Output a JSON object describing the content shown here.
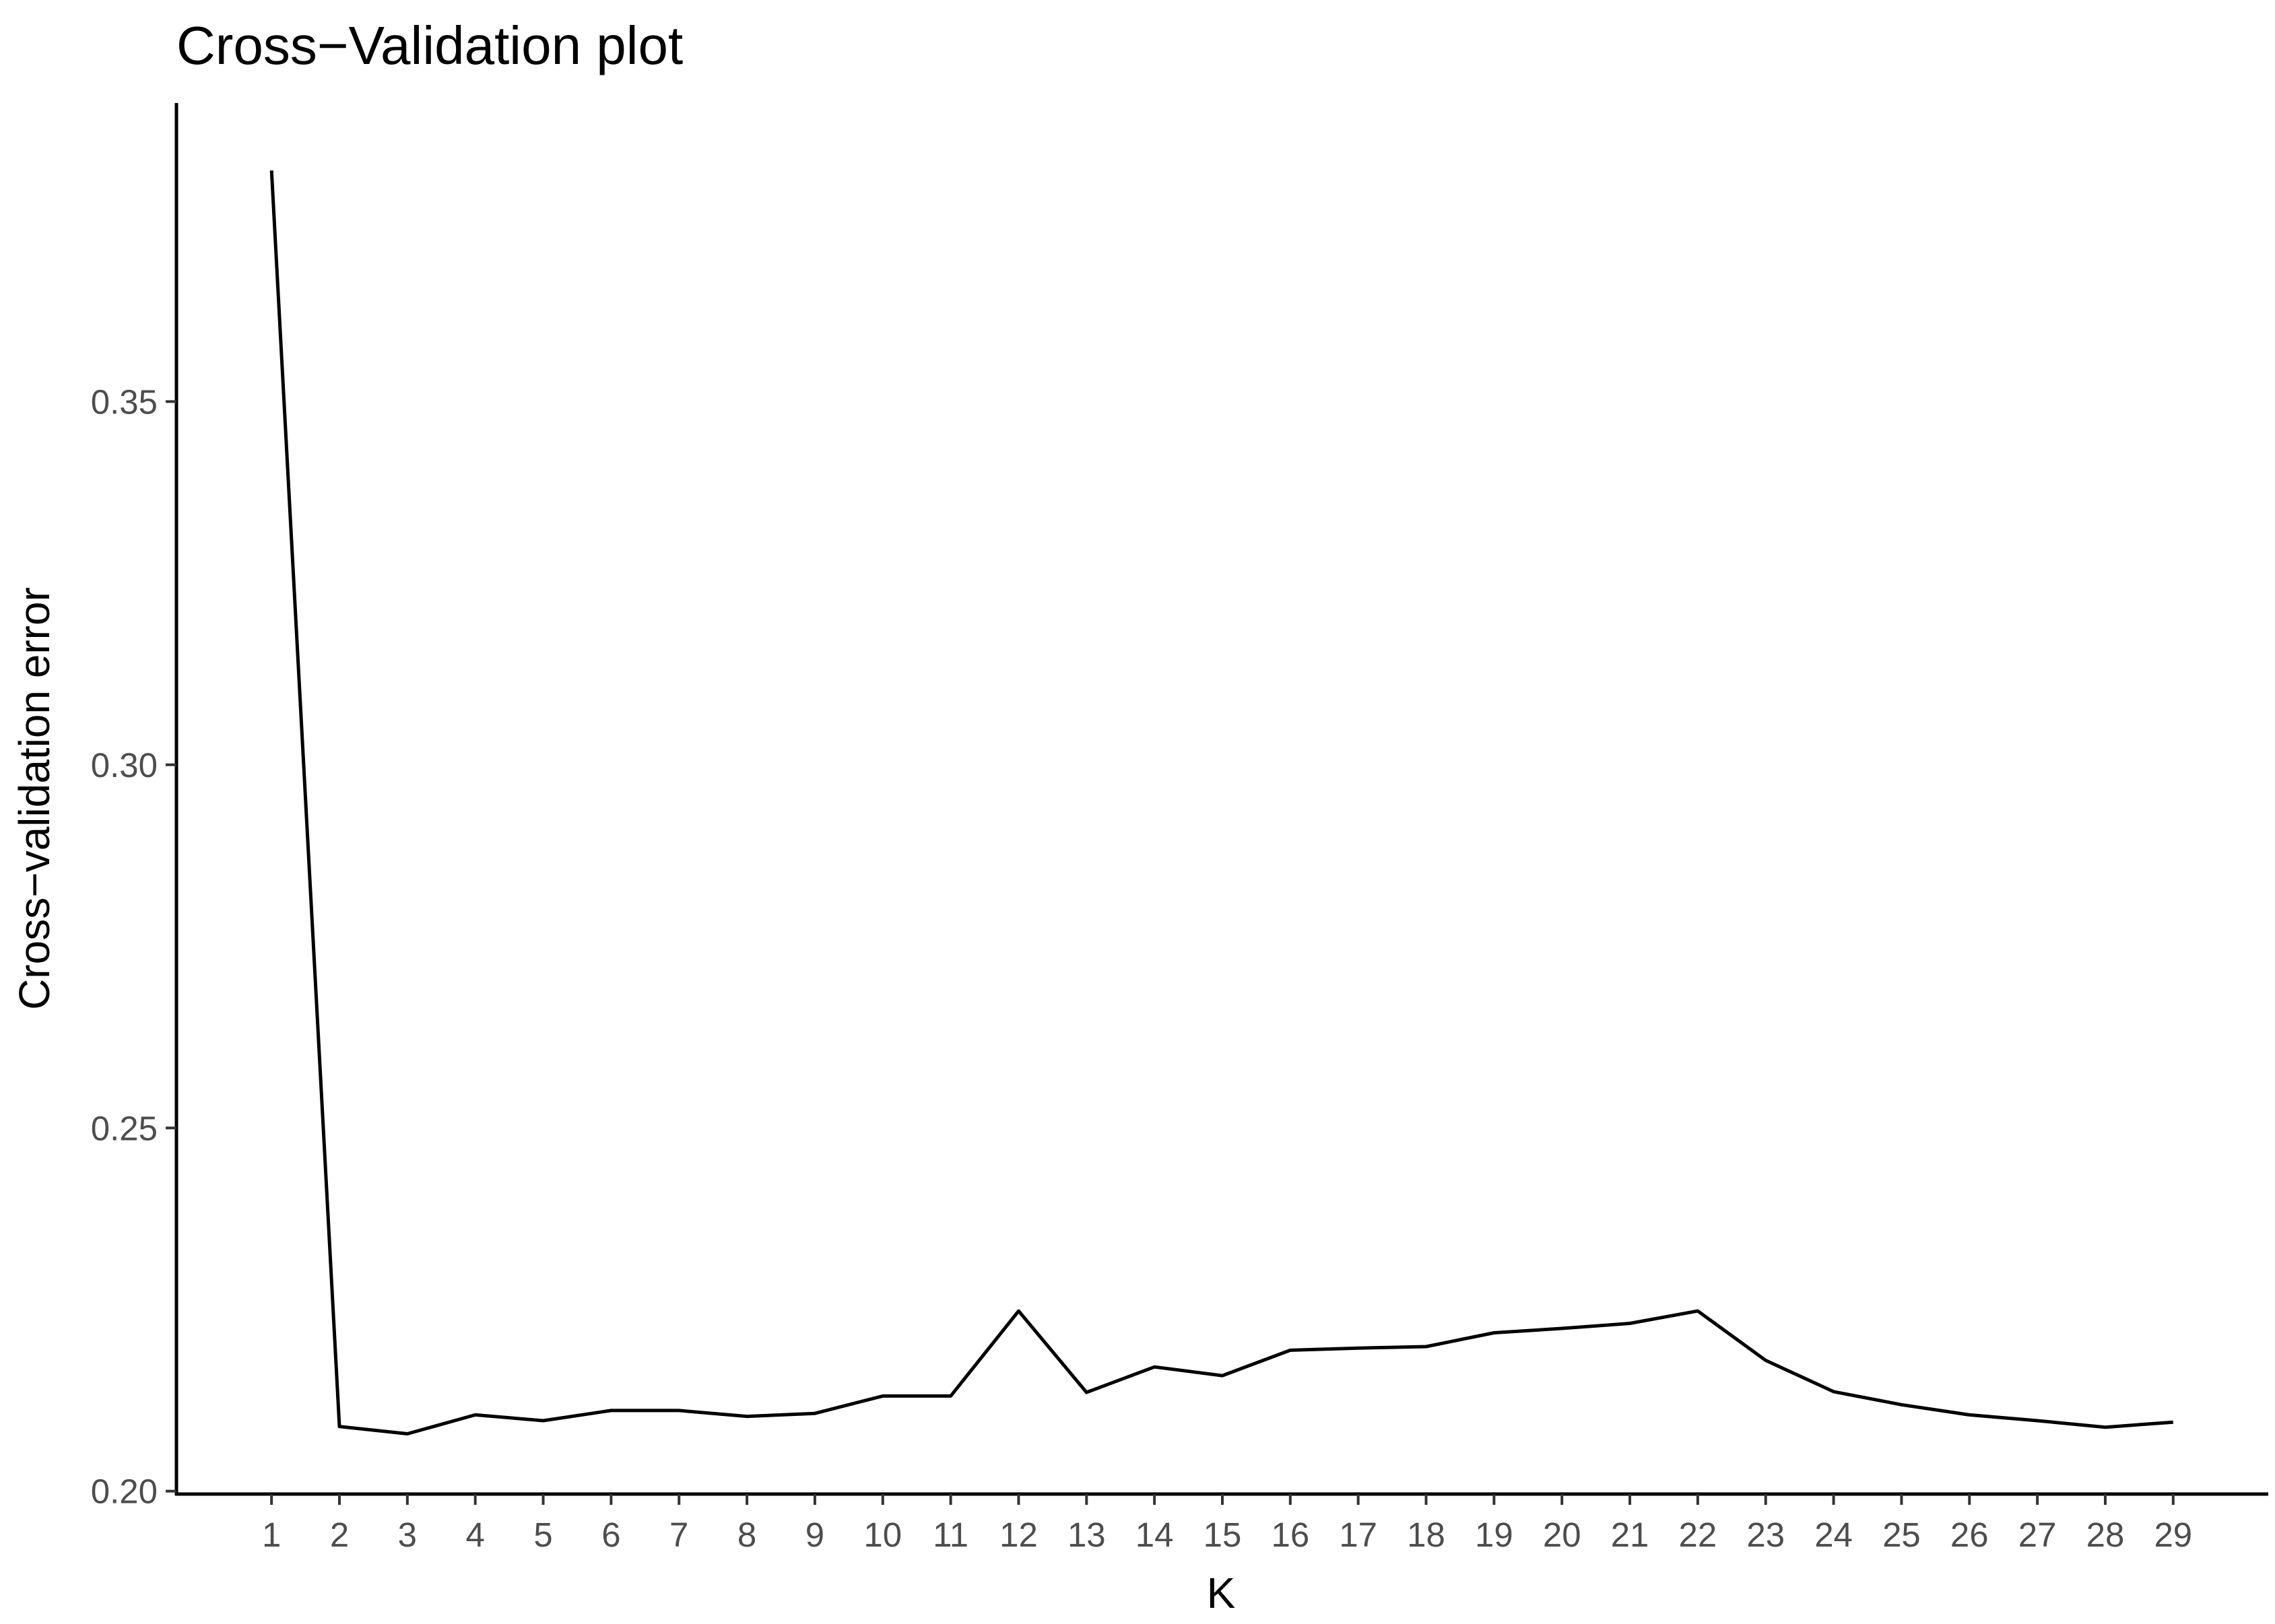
{
  "chart_data": {
    "type": "line",
    "title": "Cross−Validation plot",
    "xlabel": "K",
    "ylabel": "Cross−validation error",
    "x": [
      1,
      2,
      3,
      4,
      5,
      6,
      7,
      8,
      9,
      10,
      11,
      12,
      13,
      14,
      15,
      16,
      17,
      18,
      19,
      20,
      21,
      22,
      23,
      24,
      25,
      26,
      27,
      28,
      29
    ],
    "x_tick_labels": [
      "1",
      "2",
      "3",
      "4",
      "5",
      "6",
      "7",
      "8",
      "9",
      "10",
      "11",
      "12",
      "13",
      "14",
      "15",
      "16",
      "17",
      "18",
      "19",
      "20",
      "21",
      "22",
      "23",
      "24",
      "25",
      "26",
      "27",
      "28",
      "29"
    ],
    "series": [
      {
        "values": [
          0.3818,
          0.2089,
          0.2079,
          0.2105,
          0.2097,
          0.2111,
          0.2111,
          0.2103,
          0.2107,
          0.2131,
          0.2131,
          0.2248,
          0.2136,
          0.2171,
          0.2159,
          0.2194,
          0.2197,
          0.2199,
          0.2218,
          0.2224,
          0.2231,
          0.2248,
          0.218,
          0.2137,
          0.2119,
          0.2105,
          0.2097,
          0.2088,
          0.2095
        ]
      }
    ],
    "y_ticks": [
      0.2,
      0.25,
      0.3,
      0.35
    ],
    "y_tick_labels": [
      "0.20",
      "0.25",
      "0.30",
      "0.35"
    ],
    "xlim": [
      -0.4,
      30.4
    ],
    "ylim": [
      0.1996,
      0.3911
    ],
    "grid": false,
    "line_color": "#000000"
  }
}
